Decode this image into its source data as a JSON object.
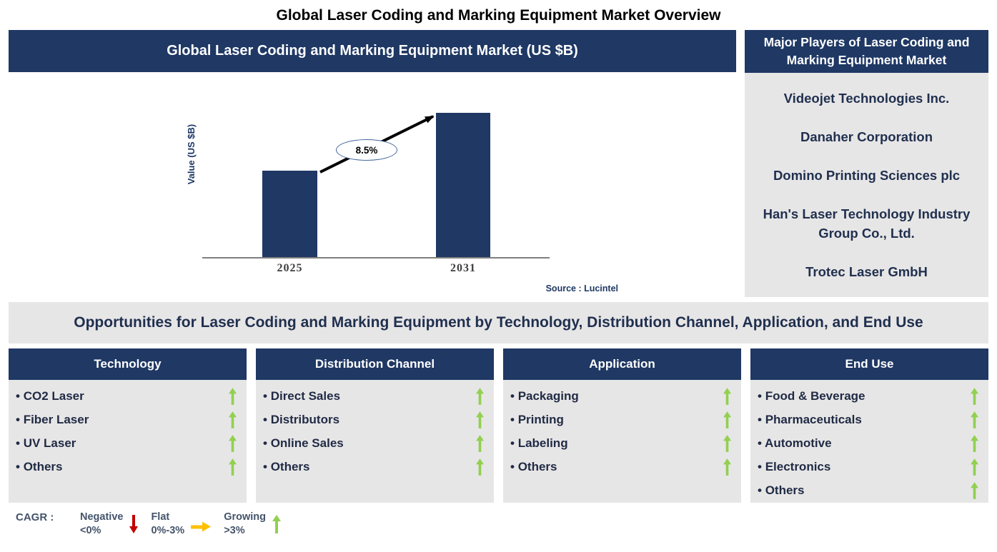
{
  "page": {
    "title": "Global Laser Coding and Marking Equipment Market Overview"
  },
  "chart_section": {
    "header": "Global Laser Coding and Marking Equipment Market (US $B)",
    "source": "Source : Lucintel"
  },
  "chart_data": {
    "type": "bar",
    "title": "Global Laser Coding and Marking Equipment Market (US $B)",
    "categories": [
      "2025",
      "2031"
    ],
    "values_relative": [
      0.6,
      1.0
    ],
    "values_labeled": false,
    "xlabel": "",
    "ylabel": "Value (US $B)",
    "annotation": {
      "cagr_label": "8.5%",
      "from_category": "2025",
      "to_category": "2031"
    },
    "bar_color": "#1F3864",
    "grid": false,
    "legend_position": "none",
    "source": "Source : Lucintel"
  },
  "major_players": {
    "header": "Major Players of Laser Coding and Marking Equipment Market",
    "companies": [
      "Videojet Technologies Inc.",
      "Danaher Corporation",
      "Domino Printing Sciences plc",
      "Han's Laser Technology Industry Group Co., Ltd.",
      "Trotec Laser GmbH"
    ]
  },
  "opportunities": {
    "title": "Opportunities for Laser Coding and Marking Equipment by Technology, Distribution Channel, Application, and End Use",
    "columns": [
      {
        "header": "Technology",
        "items": [
          {
            "label": "CO2 Laser",
            "trend": "growing"
          },
          {
            "label": "Fiber Laser",
            "trend": "growing"
          },
          {
            "label": "UV Laser",
            "trend": "growing"
          },
          {
            "label": "Others",
            "trend": "growing"
          }
        ]
      },
      {
        "header": "Distribution Channel",
        "items": [
          {
            "label": "Direct Sales",
            "trend": "growing"
          },
          {
            "label": "Distributors",
            "trend": "growing"
          },
          {
            "label": "Online Sales",
            "trend": "growing"
          },
          {
            "label": "Others",
            "trend": "growing"
          }
        ]
      },
      {
        "header": "Application",
        "items": [
          {
            "label": "Packaging",
            "trend": "growing"
          },
          {
            "label": "Printing",
            "trend": "growing"
          },
          {
            "label": "Labeling",
            "trend": "growing"
          },
          {
            "label": "Others",
            "trend": "growing"
          }
        ]
      },
      {
        "header": "End Use",
        "items": [
          {
            "label": "Food & Beverage",
            "trend": "growing"
          },
          {
            "label": "Pharmaceuticals",
            "trend": "growing"
          },
          {
            "label": "Automotive",
            "trend": "growing"
          },
          {
            "label": "Electronics",
            "trend": "growing"
          },
          {
            "label": "Others",
            "trend": "growing"
          }
        ]
      }
    ]
  },
  "legend": {
    "prefix": "CAGR :",
    "items": [
      {
        "name": "Negative",
        "range": "<0%",
        "icon": "down-arrow-icon",
        "color": "#C00000"
      },
      {
        "name": "Flat",
        "range": "0%-3%",
        "icon": "right-arrow-icon",
        "color": "#FFC000"
      },
      {
        "name": "Growing",
        "range": ">3%",
        "icon": "up-arrow-icon",
        "color": "#92D050"
      }
    ]
  },
  "colors": {
    "accent_navy": "#1F3864",
    "panel_gray": "#E7E6E6",
    "growing_green": "#92D050",
    "negative_red": "#C00000",
    "flat_orange": "#FFC000"
  }
}
